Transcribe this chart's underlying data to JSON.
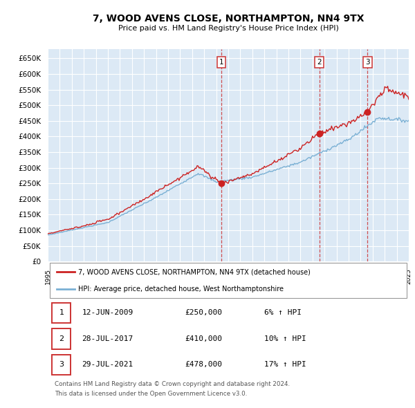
{
  "title": "7, WOOD AVENS CLOSE, NORTHAMPTON, NN4 9TX",
  "subtitle": "Price paid vs. HM Land Registry's House Price Index (HPI)",
  "bg_color": "#ffffff",
  "plot_bg_color": "#dce9f5",
  "grid_color": "#ffffff",
  "yticks": [
    0,
    50000,
    100000,
    150000,
    200000,
    250000,
    300000,
    350000,
    400000,
    450000,
    500000,
    550000,
    600000,
    650000
  ],
  "ylim": [
    0,
    680000
  ],
  "xlim": [
    1995,
    2025
  ],
  "sale_dates_num": [
    2009.44,
    2017.57,
    2021.57
  ],
  "sale_prices": [
    250000,
    410000,
    478000
  ],
  "sale_labels": [
    "1",
    "2",
    "3"
  ],
  "vline_color": "#cc3333",
  "red_line_color": "#cc2222",
  "blue_line_color": "#7ab0d4",
  "legend_red_label": "7, WOOD AVENS CLOSE, NORTHAMPTON, NN4 9TX (detached house)",
  "legend_blue_label": "HPI: Average price, detached house, West Northamptonshire",
  "table_data": [
    {
      "num": "1",
      "date": "12-JUN-2009",
      "price": "£250,000",
      "pct": "6% ↑ HPI"
    },
    {
      "num": "2",
      "date": "28-JUL-2017",
      "price": "£410,000",
      "pct": "10% ↑ HPI"
    },
    {
      "num": "3",
      "date": "29-JUL-2021",
      "price": "£478,000",
      "pct": "17% ↑ HPI"
    }
  ],
  "footer_line1": "Contains HM Land Registry data © Crown copyright and database right 2024.",
  "footer_line2": "This data is licensed under the Open Government Licence v3.0."
}
